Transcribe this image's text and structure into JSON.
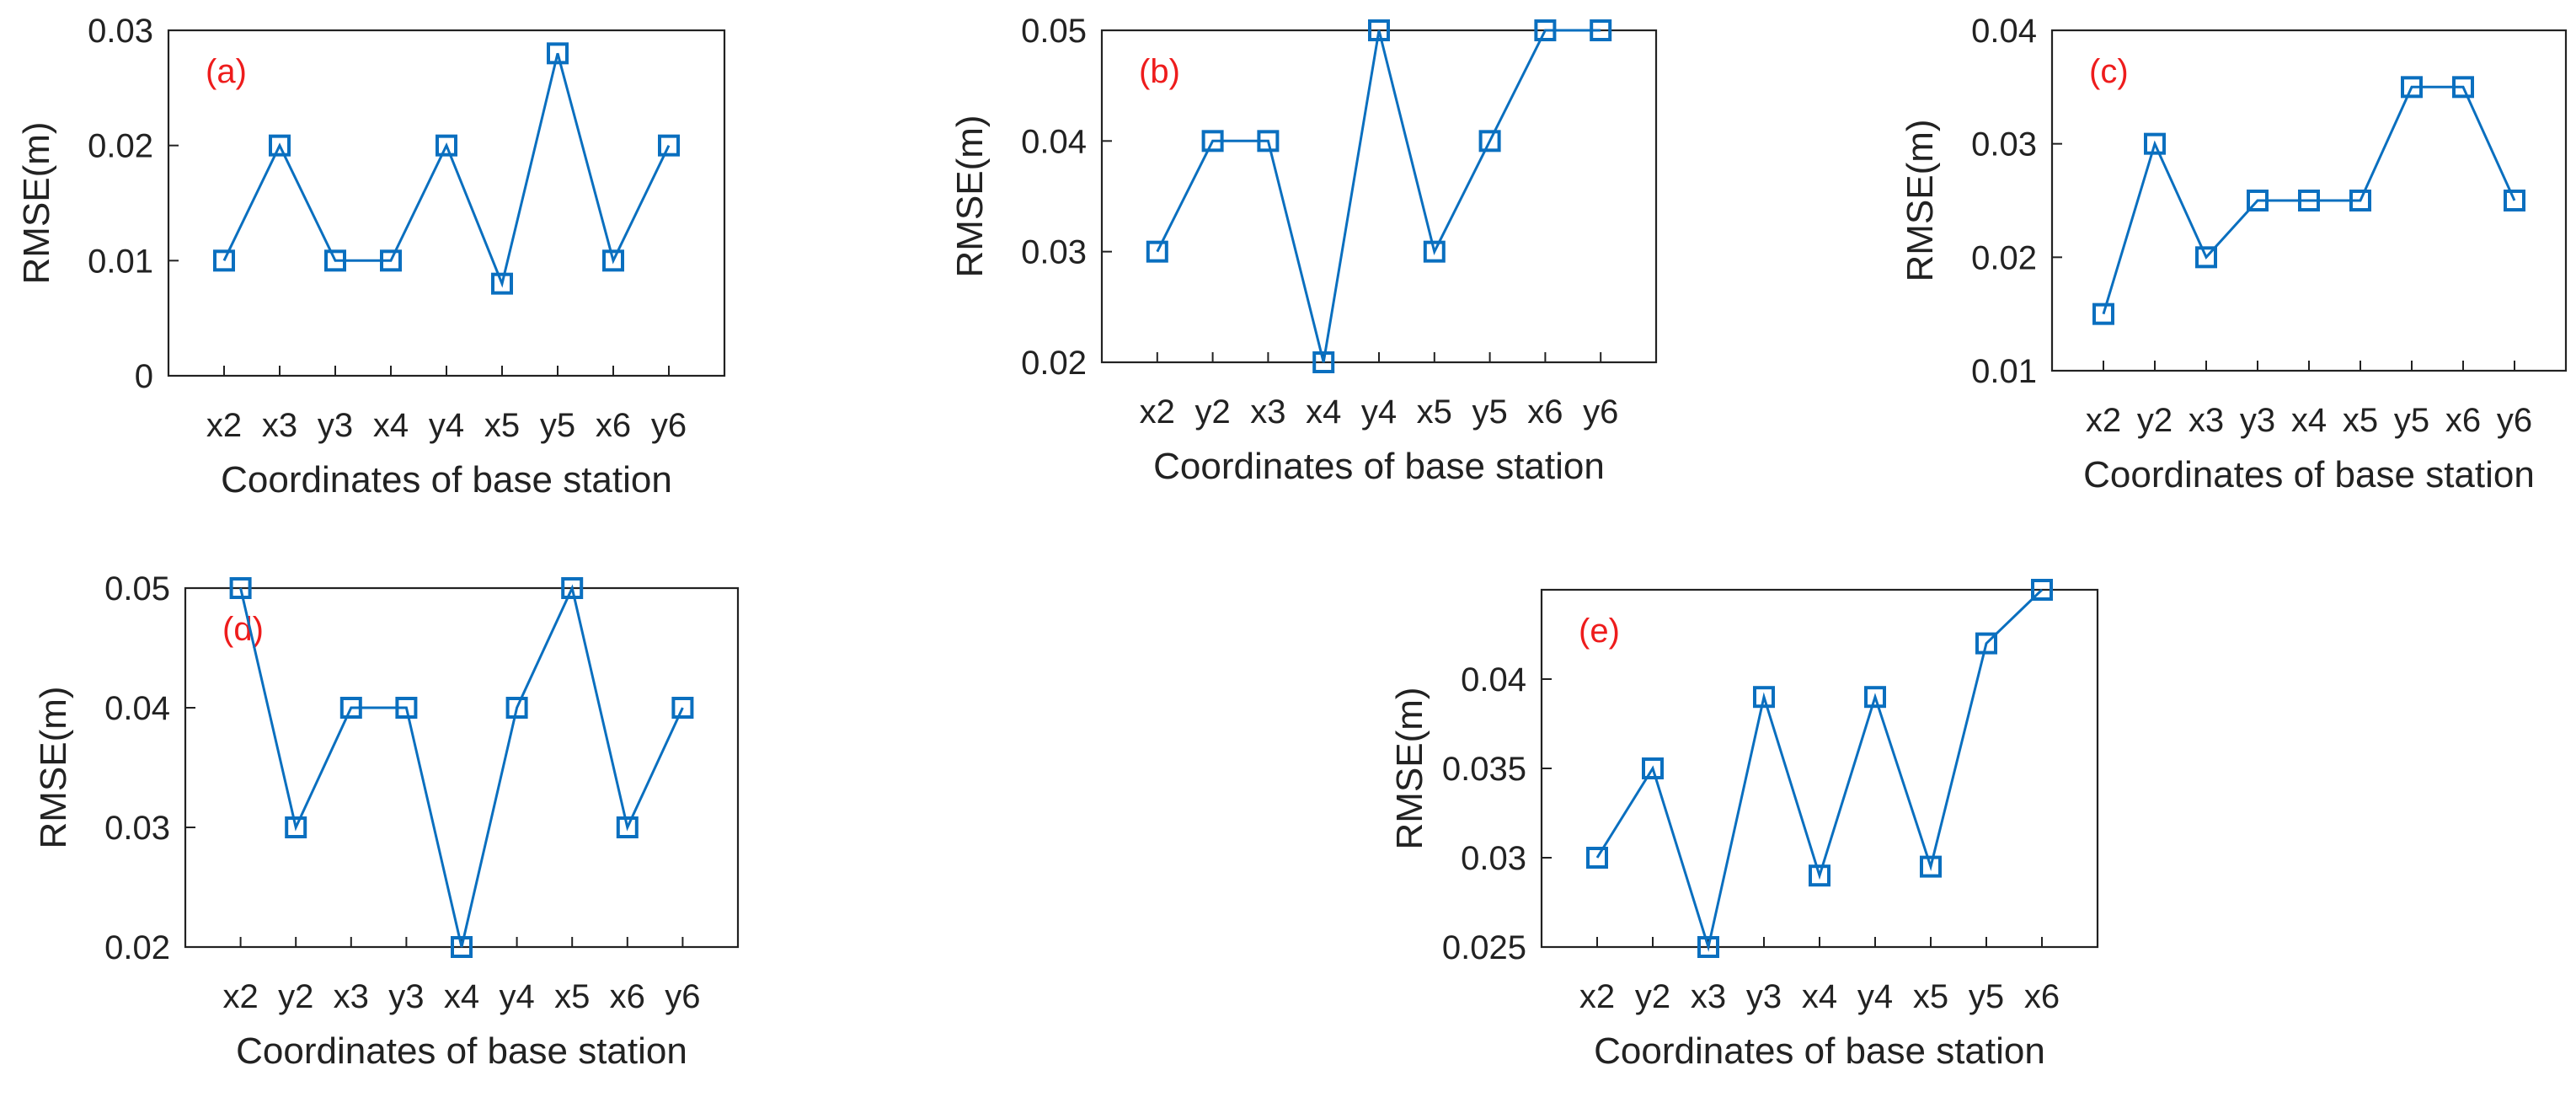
{
  "chart_data": [
    {
      "panel": "a",
      "type": "line",
      "label": "(a)",
      "categories": [
        "x2",
        "x3",
        "y3",
        "x4",
        "y4",
        "x5",
        "y5",
        "x6",
        "y6"
      ],
      "values": [
        0.01,
        0.02,
        0.01,
        0.01,
        0.02,
        0.008,
        0.028,
        0.01,
        0.02
      ],
      "yticks": [
        "0",
        "0.01",
        "0.02",
        "0.03"
      ],
      "ylim": [
        0,
        0.03
      ],
      "xlabel": "Coordinates of base station",
      "ylabel": "RMSE(m)"
    },
    {
      "panel": "b",
      "type": "line",
      "label": "(b)",
      "categories": [
        "x2",
        "y2",
        "x3",
        "x4",
        "y4",
        "x5",
        "y5",
        "x6",
        "y6"
      ],
      "values": [
        0.03,
        0.04,
        0.04,
        0.02,
        0.05,
        0.03,
        0.04,
        0.05,
        0.05
      ],
      "yticks": [
        "0.02",
        "0.03",
        "0.04",
        "0.05"
      ],
      "ylim": [
        0.02,
        0.05
      ],
      "xlabel": "Coordinates of base station",
      "ylabel": "RMSE(m)"
    },
    {
      "panel": "c",
      "type": "line",
      "label": "(c)",
      "categories": [
        "x2",
        "y2",
        "x3",
        "y3",
        "x4",
        "x5",
        "y5",
        "x6",
        "y6"
      ],
      "values": [
        0.015,
        0.03,
        0.02,
        0.025,
        0.025,
        0.025,
        0.035,
        0.035,
        0.025
      ],
      "yticks": [
        "0.01",
        "0.02",
        "0.03",
        "0.04"
      ],
      "ylim": [
        0.01,
        0.04
      ],
      "xlabel": "Coordinates of base station",
      "ylabel": "RMSE(m)"
    },
    {
      "panel": "d",
      "type": "line",
      "label": "(d)",
      "categories": [
        "x2",
        "y2",
        "x3",
        "y3",
        "x4",
        "y4",
        "x5",
        "x6",
        "y6"
      ],
      "values": [
        0.05,
        0.03,
        0.04,
        0.04,
        0.02,
        0.04,
        0.05,
        0.03,
        0.04
      ],
      "yticks": [
        "0.02",
        "0.03",
        "0.04",
        "0.05"
      ],
      "ylim": [
        0.02,
        0.05
      ],
      "xlabel": "Coordinates of base station",
      "ylabel": "RMSE(m)"
    },
    {
      "panel": "e",
      "type": "line",
      "label": "(e)",
      "categories": [
        "x2",
        "y2",
        "x3",
        "y3",
        "x4",
        "y4",
        "x5",
        "y5",
        "x6"
      ],
      "values": [
        0.03,
        0.035,
        0.025,
        0.039,
        0.029,
        0.039,
        0.0295,
        0.042,
        0.045
      ],
      "yticks": [
        "0.025",
        "0.03",
        "0.035",
        "0.04"
      ],
      "ylim": [
        0.025,
        0.045
      ],
      "xlabel": "Coordinates of base station",
      "ylabel": "RMSE(m)"
    }
  ],
  "colors": {
    "series": "#0a6fbf",
    "panel_label": "#ee1c1c",
    "axis": "#222222"
  }
}
